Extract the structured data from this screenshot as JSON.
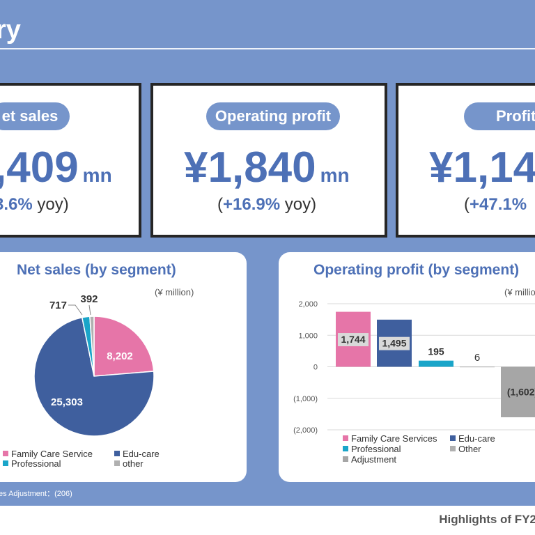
{
  "header": {
    "title": "ry"
  },
  "kpis": [
    {
      "label": "et sales",
      "value": ",409",
      "unit": "mn",
      "yoy_open": "",
      "yoy_pct": "3.6%",
      "yoy_close": " yoy)"
    },
    {
      "label": "Operating profit",
      "value": "¥1,840",
      "unit": "mn",
      "yoy_open": "(",
      "yoy_pct": "+16.9%",
      "yoy_close": " yoy)"
    },
    {
      "label": "Profit",
      "value": "¥1,14",
      "unit": "",
      "yoy_open": "(",
      "yoy_pct": "+47.1%",
      "yoy_close": " "
    }
  ],
  "net_sales_panel": {
    "title": "Net sales (by segment)",
    "unit": "(¥ million)",
    "legend": [
      "Family Care Service",
      "Edu-care",
      "Professional",
      "other"
    ]
  },
  "op_profit_panel": {
    "title": "Operating profit (by segment)",
    "unit": "(¥ millio",
    "legend": [
      "Family Care Services",
      "Edu-care",
      "Professional",
      "Other",
      "Adjustment"
    ]
  },
  "colors": {
    "family_care": "#e675a8",
    "edu_care": "#3f5f9e",
    "professional": "#1aa5c9",
    "other": "#b0b0b0",
    "adjustment": "#a6a6a6",
    "accent": "#4d70b6",
    "background": "#7695cb"
  },
  "chart_data": [
    {
      "type": "pie",
      "title": "Net sales (by segment)",
      "categories": [
        "Family Care Service",
        "Edu-care",
        "Professional",
        "other"
      ],
      "values": [
        8202,
        25303,
        717,
        392
      ],
      "labels": [
        "8,202",
        "25,303",
        "717",
        "392"
      ],
      "unit": "(¥ million)"
    },
    {
      "type": "bar",
      "title": "Operating profit (by segment)",
      "categories": [
        "Family Care Services",
        "Edu-care",
        "Professional",
        "Other",
        "Adjustment"
      ],
      "values": [
        1744,
        1495,
        195,
        6,
        -1602
      ],
      "labels": [
        "1,744",
        "1,495",
        "195",
        "6",
        "(1,602)"
      ],
      "ylim": [
        -2000,
        2000
      ],
      "yticks": [
        "2,000",
        "1,000",
        "0",
        "(1,000)",
        "(2,000)"
      ],
      "grid": true
    }
  ],
  "footer": {
    "note": "es Adjustment：(206)",
    "highlights": "Highlights of FY2"
  }
}
